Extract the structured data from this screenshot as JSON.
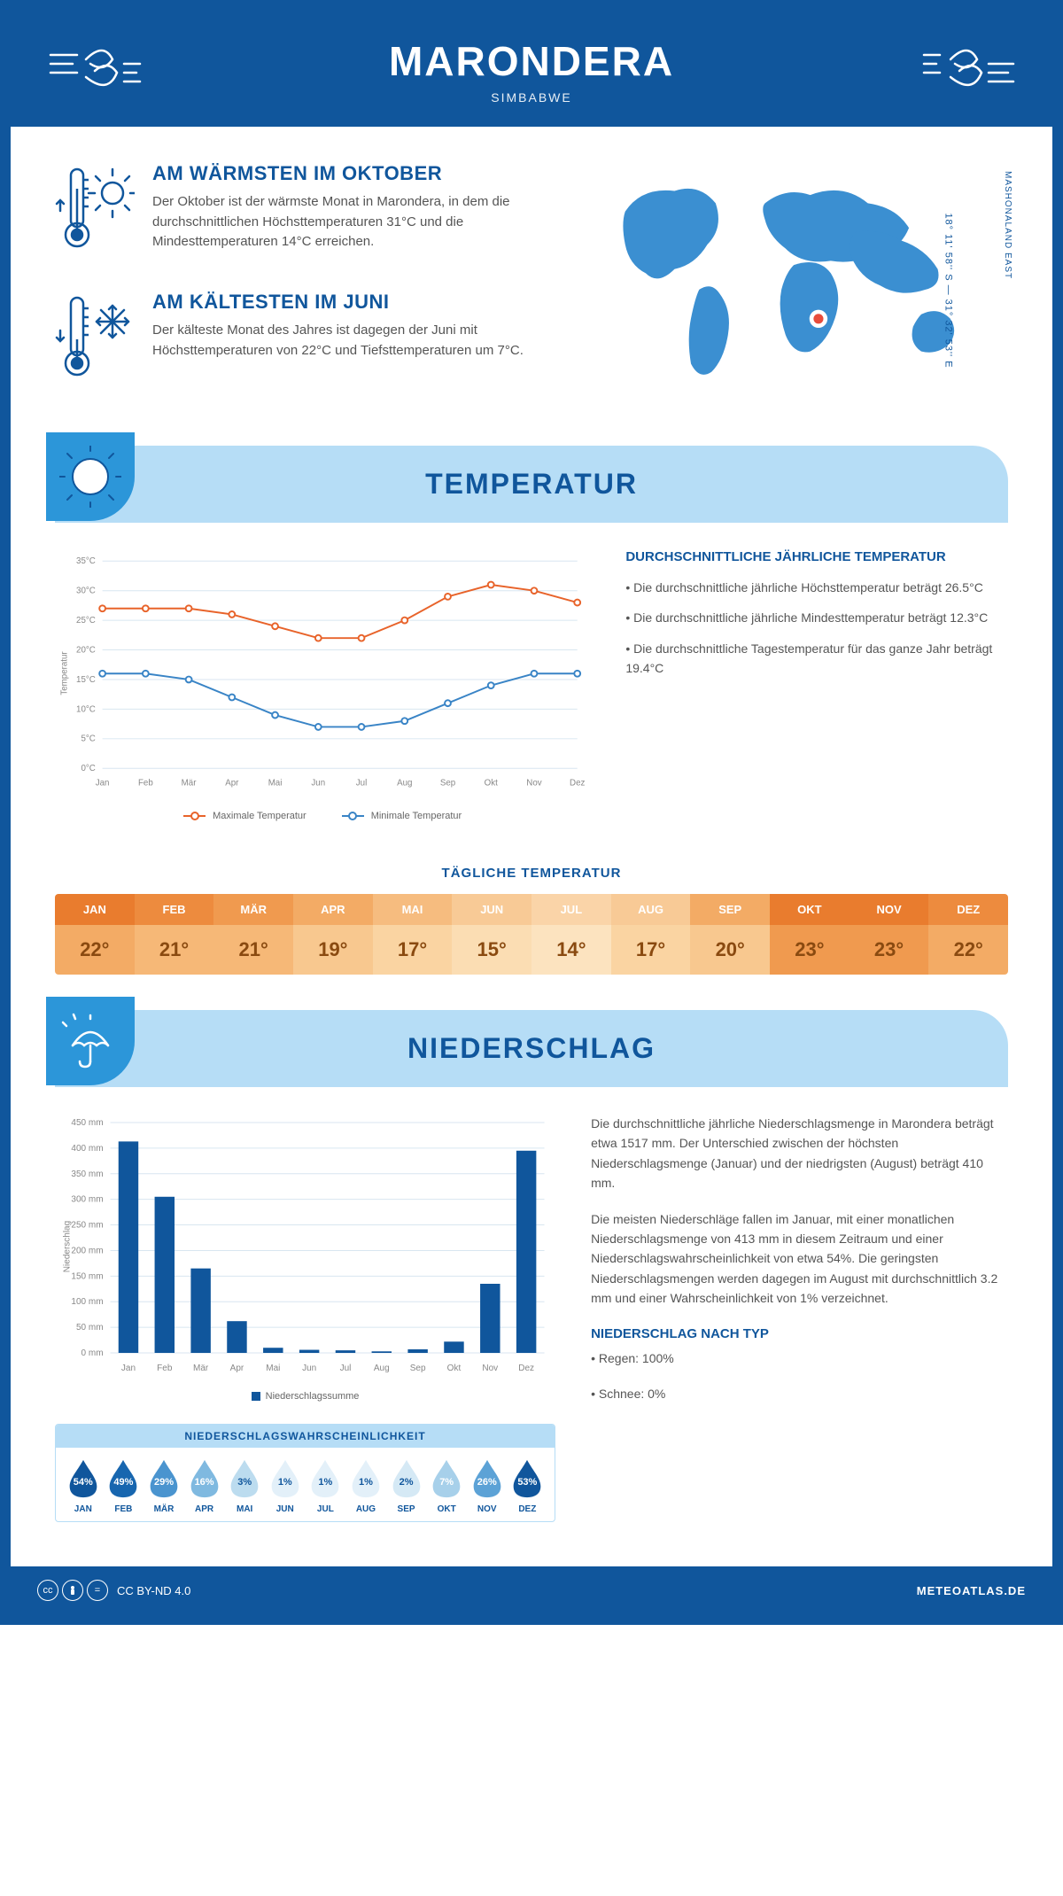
{
  "header": {
    "title": "MARONDERA",
    "country": "SIMBABWE"
  },
  "location": {
    "coords": "18° 11' 58'' S — 31° 32' 53'' E",
    "region": "MASHONALAND EAST",
    "marker": {
      "cx_pct": 55,
      "cy_pct": 68
    }
  },
  "warmest": {
    "heading": "AM WÄRMSTEN IM OKTOBER",
    "text": "Der Oktober ist der wärmste Monat in Marondera, in dem die durchschnittlichen Höchsttemperaturen 31°C und die Mindesttemperaturen 14°C erreichen."
  },
  "coldest": {
    "heading": "AM KÄLTESTEN IM JUNI",
    "text": "Der kälteste Monat des Jahres ist dagegen der Juni mit Höchsttemperaturen von 22°C und Tiefsttemperaturen um 7°C."
  },
  "sections": {
    "temperature": "TEMPERATUR",
    "precipitation": "NIEDERSCHLAG"
  },
  "temp_chart": {
    "type": "line",
    "months": [
      "Jan",
      "Feb",
      "Mär",
      "Apr",
      "Mai",
      "Jun",
      "Jul",
      "Aug",
      "Sep",
      "Okt",
      "Nov",
      "Dez"
    ],
    "max_values": [
      27,
      27,
      27,
      26,
      24,
      22,
      22,
      25,
      29,
      31,
      30,
      28
    ],
    "min_values": [
      16,
      16,
      15,
      12,
      9,
      7,
      7,
      8,
      11,
      14,
      16,
      16
    ],
    "max_color": "#e8632a",
    "min_color": "#3984c6",
    "grid_color": "#d8e6f0",
    "axis_color": "#888",
    "ylim": [
      0,
      35
    ],
    "ytick_step": 5,
    "ylabel": "Temperatur",
    "legend_max": "Maximale Temperatur",
    "legend_min": "Minimale Temperatur",
    "marker_radius": 3.5,
    "line_width": 2
  },
  "temp_info": {
    "heading": "DURCHSCHNITTLICHE JÄHRLICHE TEMPERATUR",
    "b1": "• Die durchschnittliche jährliche Höchsttemperatur beträgt 26.5°C",
    "b2": "• Die durchschnittliche jährliche Mindesttemperatur beträgt 12.3°C",
    "b3": "• Die durchschnittliche Tagestemperatur für das ganze Jahr beträgt 19.4°C"
  },
  "daily_temp": {
    "heading": "TÄGLICHE TEMPERATUR",
    "months": [
      "JAN",
      "FEB",
      "MÄR",
      "APR",
      "MAI",
      "JUN",
      "JUL",
      "AUG",
      "SEP",
      "OKT",
      "NOV",
      "DEZ"
    ],
    "values": [
      "22°",
      "21°",
      "21°",
      "19°",
      "17°",
      "15°",
      "14°",
      "17°",
      "20°",
      "23°",
      "23°",
      "22°"
    ],
    "header_colors": [
      "#e97c2e",
      "#ed8b3e",
      "#f09a4f",
      "#f3ab65",
      "#f6bc7f",
      "#f8ca96",
      "#fad4a8",
      "#f8ca96",
      "#f3ab65",
      "#e97c2e",
      "#e97c2e",
      "#ed8b3e"
    ],
    "value_colors": [
      "#f3ab65",
      "#f6b877",
      "#f6b877",
      "#f8c88f",
      "#fad4a2",
      "#fbddb3",
      "#fce3bf",
      "#fad4a2",
      "#f8c88f",
      "#f09a4f",
      "#f09a4f",
      "#f3ab65"
    ],
    "value_text_color": "#8a4a10"
  },
  "precip_chart": {
    "type": "bar",
    "months": [
      "Jan",
      "Feb",
      "Mär",
      "Apr",
      "Mai",
      "Jun",
      "Jul",
      "Aug",
      "Sep",
      "Okt",
      "Nov",
      "Dez"
    ],
    "values": [
      413,
      305,
      165,
      62,
      10,
      6,
      5,
      3,
      7,
      22,
      135,
      395
    ],
    "bar_color": "#10569c",
    "grid_color": "#d8e6f0",
    "axis_color": "#888",
    "ylim": [
      0,
      450
    ],
    "ytick_step": 50,
    "ylabel": "Niederschlag",
    "legend": "Niederschlagssumme",
    "bar_width_ratio": 0.55
  },
  "precip_text": {
    "p1": "Die durchschnittliche jährliche Niederschlagsmenge in Marondera beträgt etwa 1517 mm. Der Unterschied zwischen der höchsten Niederschlagsmenge (Januar) und der niedrigsten (August) beträgt 410 mm.",
    "p2": "Die meisten Niederschläge fallen im Januar, mit einer monatlichen Niederschlagsmenge von 413 mm in diesem Zeitraum und einer Niederschlagswahrscheinlichkeit von etwa 54%. Die geringsten Niederschlagsmengen werden dagegen im August mit durchschnittlich 3.2 mm und einer Wahrscheinlichkeit von 1% verzeichnet.",
    "type_heading": "NIEDERSCHLAG NACH TYP",
    "type1": "• Regen: 100%",
    "type2": "• Schnee: 0%"
  },
  "precip_prob": {
    "heading": "NIEDERSCHLAGSWAHRSCHEINLICHKEIT",
    "months": [
      "JAN",
      "FEB",
      "MÄR",
      "APR",
      "MAI",
      "JUN",
      "JUL",
      "AUG",
      "SEP",
      "OKT",
      "NOV",
      "DEZ"
    ],
    "values": [
      "54%",
      "49%",
      "29%",
      "16%",
      "3%",
      "1%",
      "1%",
      "1%",
      "2%",
      "7%",
      "26%",
      "53%"
    ],
    "colors": [
      "#10569c",
      "#1766af",
      "#4a94cf",
      "#7fb9e0",
      "#bcdcef",
      "#e3f0f9",
      "#e3f0f9",
      "#e3f0f9",
      "#d5e9f5",
      "#a7d0ea",
      "#5ca2d6",
      "#10569c"
    ],
    "text_colors": [
      "#fff",
      "#fff",
      "#fff",
      "#fff",
      "#10569c",
      "#10569c",
      "#10569c",
      "#10569c",
      "#10569c",
      "#fff",
      "#fff",
      "#fff"
    ]
  },
  "footer": {
    "license": "CC BY-ND 4.0",
    "site": "METEOATLAS.DE"
  },
  "colors": {
    "primary": "#10569c",
    "light_blue": "#b6ddf6",
    "mid_blue": "#2c96d9",
    "map_fill": "#3b8fd1",
    "marker_ring": "#ffffff",
    "marker_center": "#e74c3c"
  }
}
